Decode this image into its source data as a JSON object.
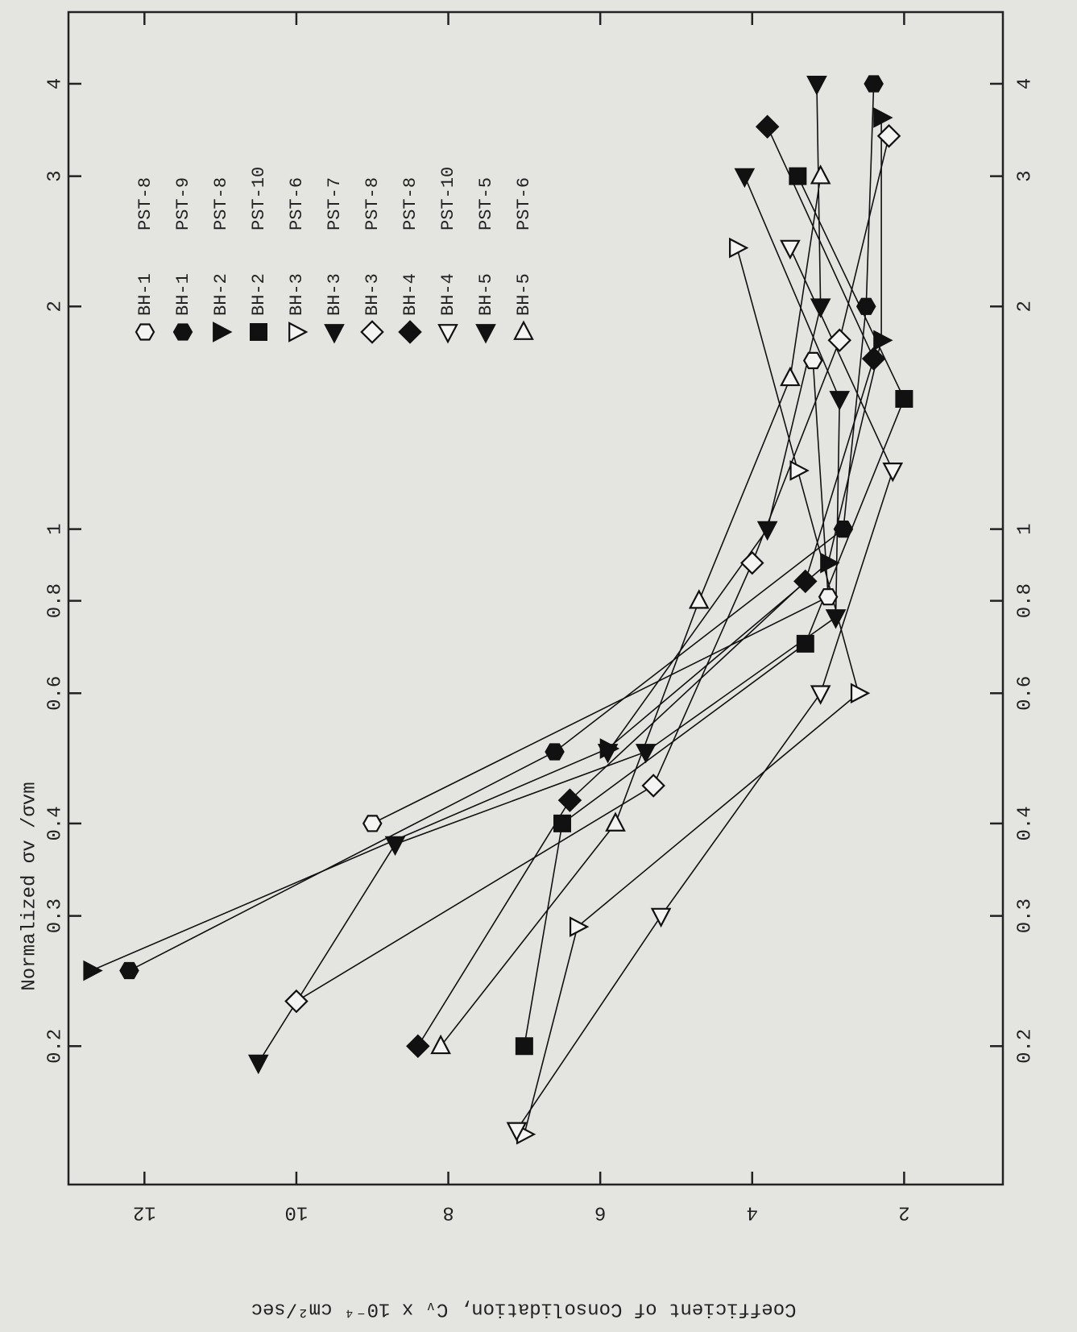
{
  "chart_data": {
    "type": "line",
    "title": "Normalized σv /σvm",
    "y_label": "Coefficient of Consolidation, Cᵥ x 10⁻⁴ cm²/sec",
    "xscale": "log",
    "xlim": [
      0.13,
      5
    ],
    "xticks": [
      0.2,
      0.3,
      0.4,
      0.6,
      0.8,
      1,
      2,
      3,
      4
    ],
    "ylim": [
      13,
      0.7
    ],
    "yticks": [
      12,
      10,
      8,
      6,
      4,
      2
    ],
    "series": [
      {
        "name": "BH-1 PST-8",
        "color": "#111111",
        "marker": "hexagon",
        "filled": false,
        "x": [
          0.4,
          0.81,
          1.69
        ],
        "values": [
          9.0,
          3.0,
          3.2
        ]
      },
      {
        "name": "BH-1 PST-9",
        "color": "#111111",
        "marker": "hexagon",
        "filled": true,
        "x": [
          0.253,
          0.5,
          1.0,
          2.0,
          4.0
        ],
        "values": [
          12.2,
          6.6,
          2.8,
          2.5,
          2.4
        ]
      },
      {
        "name": "BH-2 PST-8",
        "color": "#111111",
        "marker": "triangle-right",
        "filled": true,
        "x": [
          0.253,
          0.505,
          0.9,
          1.8,
          3.6
        ],
        "values": [
          12.7,
          5.9,
          3.0,
          2.3,
          2.3
        ]
      },
      {
        "name": "BH-2 PST-10",
        "color": "#111111",
        "marker": "square",
        "filled": true,
        "x": [
          0.2,
          0.4,
          0.7,
          1.5,
          3.0
        ],
        "values": [
          7.0,
          6.5,
          3.3,
          2.0,
          3.4
        ]
      },
      {
        "name": "BH-3 PST-6",
        "color": "#111111",
        "marker": "triangle-right",
        "filled": false,
        "x": [
          0.152,
          0.29,
          0.6,
          1.2,
          2.4
        ],
        "values": [
          7.0,
          6.3,
          2.6,
          3.4,
          4.2
        ]
      },
      {
        "name": "BH-3 PST-7",
        "color": "#111111",
        "marker": "triangle-down",
        "filled": true,
        "x": [
          0.19,
          0.375,
          0.5,
          0.76,
          1.5,
          3.0
        ],
        "values": [
          10.5,
          8.7,
          5.4,
          2.9,
          2.85,
          4.1
        ]
      },
      {
        "name": "BH-3 PST-8",
        "color": "#111111",
        "marker": "diamond",
        "filled": false,
        "x": [
          0.23,
          0.45,
          0.9,
          1.8,
          3.4
        ],
        "values": [
          10.0,
          5.3,
          4.0,
          2.85,
          2.2
        ]
      },
      {
        "name": "BH-4 PST-8",
        "color": "#111111",
        "marker": "diamond",
        "filled": true,
        "x": [
          0.2,
          0.43,
          0.85,
          1.7,
          3.5
        ],
        "values": [
          8.4,
          6.4,
          3.3,
          2.4,
          3.8
        ]
      },
      {
        "name": "BH-4 PST-10",
        "color": "#111111",
        "marker": "triangle-down",
        "filled": false,
        "x": [
          0.154,
          0.3,
          0.6,
          1.2,
          2.4
        ],
        "values": [
          7.1,
          5.2,
          3.1,
          2.15,
          3.5
        ]
      },
      {
        "name": "BH-5 PST-5",
        "color": "#111111",
        "marker": "triangle-down",
        "filled": true,
        "x": [
          0.5,
          1.0,
          2.0,
          4.0
        ],
        "values": [
          5.9,
          3.8,
          3.1,
          3.15
        ]
      },
      {
        "name": "BH-5 PST-6",
        "color": "#111111",
        "marker": "triangle-up",
        "filled": false,
        "x": [
          0.2,
          0.4,
          0.8,
          1.6,
          3.0
        ],
        "values": [
          8.1,
          5.8,
          4.7,
          3.5,
          3.1
        ]
      }
    ]
  }
}
